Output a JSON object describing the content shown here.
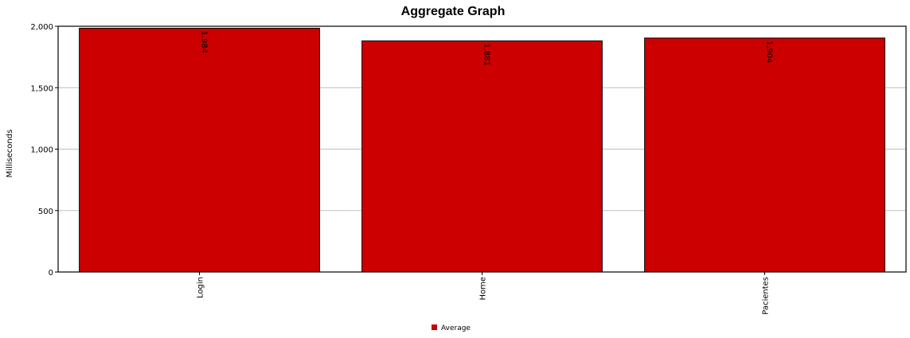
{
  "chart_data": {
    "type": "bar",
    "title": "Aggregate Graph",
    "xlabel": "",
    "ylabel": "Milliseconds",
    "categories": [
      "Login",
      "Home",
      "Pacientes"
    ],
    "series": [
      {
        "name": "Average",
        "values": [
          1984,
          1881,
          1904
        ],
        "color": "#cc0000"
      }
    ],
    "data_labels": [
      "1,984",
      "1,881",
      "1,904"
    ],
    "ylim": [
      0,
      2000
    ],
    "yticks": [
      0,
      500,
      1000,
      1500,
      2000
    ],
    "ytick_labels": [
      "0",
      "500",
      "1,000",
      "1,500",
      "2,000"
    ],
    "grid": true,
    "legend_position": "bottom"
  }
}
